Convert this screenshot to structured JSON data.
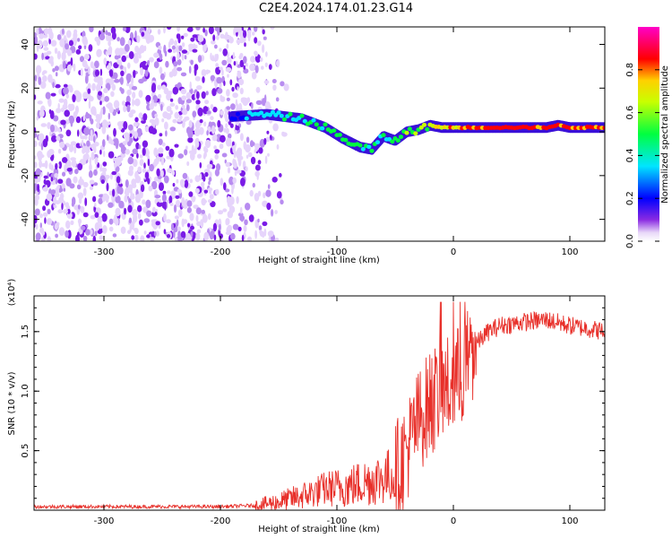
{
  "title": "C2E4.2024.174.01.23.G14",
  "colors": {
    "snr_line": "#e8302a",
    "axis": "#000000"
  },
  "chart_data": [
    {
      "type": "heatmap",
      "xlabel": "Height of straight line (km)",
      "ylabel": "Frequency (Hz)",
      "xlim": [
        -360,
        130
      ],
      "ylim": [
        -50,
        48
      ],
      "xticks": [
        -300,
        -200,
        -100,
        0,
        100
      ],
      "yticks": [
        -40,
        -20,
        0,
        20,
        40
      ],
      "colorbar": {
        "label": "Normalized spectral amplitude",
        "range": [
          0.0,
          1.0
        ],
        "ticks": [
          "0.0",
          "0.2",
          "0.4",
          "0.6",
          "0.8"
        ],
        "colormap": "rainbow (violet-blue-cyan-green-yellow-red-magenta)"
      },
      "ridge": {
        "description": "dominant frequency trace",
        "x": [
          -190,
          -160,
          -130,
          -110,
          -95,
          -80,
          -70,
          -60,
          -50,
          -40,
          -30,
          -20,
          -10,
          0,
          30,
          60,
          80,
          90,
          100,
          130
        ],
        "y": [
          7,
          8,
          6,
          2,
          -3,
          -7,
          -8,
          -2,
          -4,
          0,
          1,
          3,
          2,
          2,
          2,
          2,
          2,
          3,
          2,
          2
        ],
        "amplitude": [
          0.3,
          0.45,
          0.5,
          0.55,
          0.6,
          0.55,
          0.55,
          0.5,
          0.55,
          0.6,
          0.65,
          0.7,
          0.75,
          0.85,
          0.9,
          0.95,
          0.95,
          0.9,
          0.9,
          0.9
        ]
      }
    },
    {
      "type": "line",
      "xlabel": "Height of straight line (km)",
      "ylabel": "SNR (10 * v/v)",
      "yscale_note": "(x10⁴)",
      "xlim": [
        -360,
        130
      ],
      "ylim": [
        0,
        1.8
      ],
      "xticks": [
        -300,
        -200,
        -100,
        0,
        100
      ],
      "yticks": [
        0.5,
        1.0,
        1.5
      ],
      "ytick_labels": [
        "0.5",
        "1.0",
        "1.5"
      ],
      "series": [
        {
          "x": [
            -360,
            -300,
            -250,
            -200,
            -170,
            -150,
            -130,
            -110,
            -90,
            -70,
            -50,
            -40,
            -30,
            -20,
            -10,
            0,
            10,
            20,
            30,
            40,
            60,
            80,
            100,
            120,
            130
          ],
          "y": [
            0.03,
            0.03,
            0.03,
            0.03,
            0.04,
            0.07,
            0.12,
            0.18,
            0.2,
            0.25,
            0.3,
            0.5,
            0.75,
            0.9,
            1.0,
            1.05,
            1.2,
            1.4,
            1.5,
            1.55,
            1.58,
            1.6,
            1.55,
            1.52,
            1.5
          ]
        }
      ]
    }
  ]
}
